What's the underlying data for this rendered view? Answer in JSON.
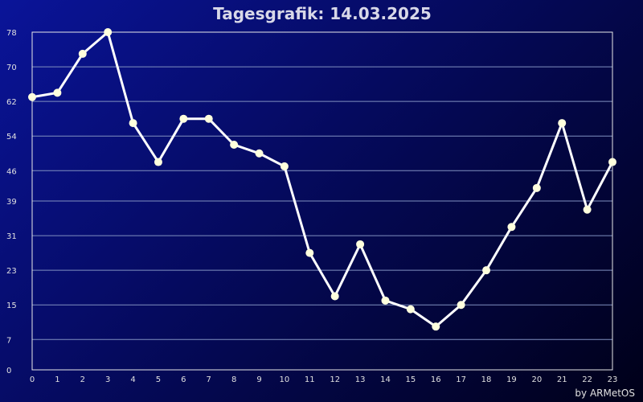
{
  "chart_data": {
    "type": "line",
    "title": "Tagesgrafik: 14.03.2025",
    "xlabel": "",
    "ylabel": "",
    "x": [
      0,
      1,
      2,
      3,
      4,
      5,
      6,
      7,
      8,
      9,
      10,
      11,
      12,
      13,
      14,
      15,
      16,
      17,
      18,
      19,
      20,
      21,
      22,
      23
    ],
    "xlim": [
      0,
      23
    ],
    "ylim": [
      0,
      78
    ],
    "y_ticks": [
      0,
      7,
      15,
      23,
      31,
      39,
      46,
      54,
      62,
      70,
      78
    ],
    "grid": true,
    "series": [
      {
        "values": [
          63,
          64,
          73,
          78,
          57,
          48,
          58,
          58,
          52,
          50,
          47,
          27,
          17,
          29,
          16,
          14,
          10,
          15,
          23,
          33,
          42,
          57,
          37,
          48
        ]
      }
    ],
    "colors": {
      "line": "#ffffff",
      "marker": "#ffffdd",
      "grid": "#8090c0",
      "frame": "#e8e8e8"
    },
    "credit": "by ARMetOS"
  }
}
